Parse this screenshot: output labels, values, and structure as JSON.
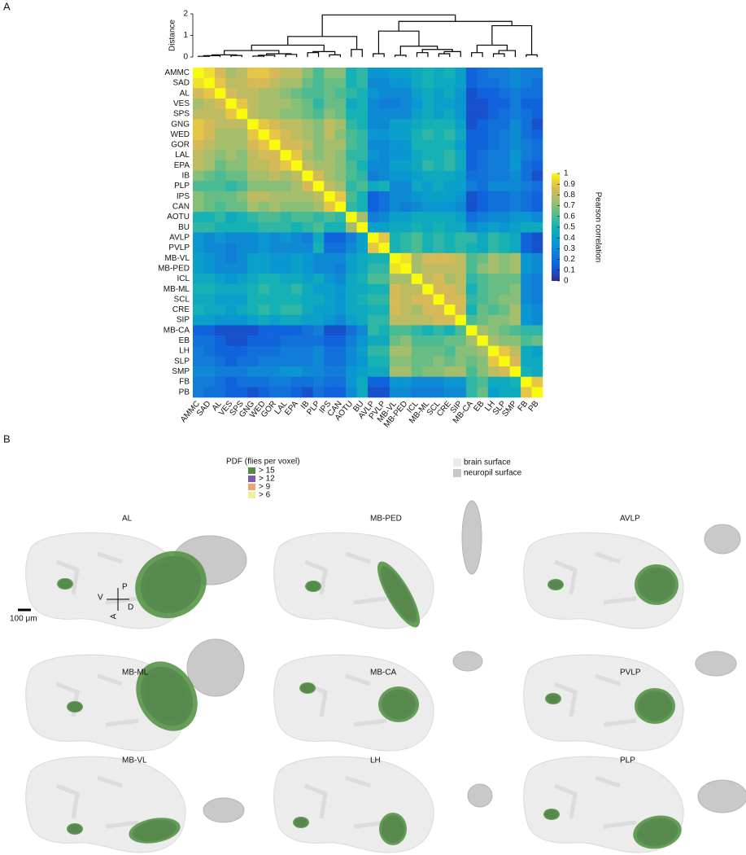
{
  "panel_labels": [
    "A",
    "B"
  ],
  "chart_data": {
    "type": "heatmap",
    "categories": [
      "AMMC",
      "SAD",
      "AL",
      "VES",
      "SPS",
      "GNG",
      "WED",
      "GOR",
      "LAL",
      "EPA",
      "IB",
      "PLP",
      "IPS",
      "CAN",
      "AOTU",
      "BU",
      "AVLP",
      "PVLP",
      "MB-VL",
      "MB-PED",
      "ICL",
      "MB-ML",
      "SCL",
      "CRE",
      "SIP",
      "MB-CA",
      "EB",
      "LH",
      "SLP",
      "SMP",
      "FB",
      "PB"
    ],
    "values": [
      [
        1
      ],
      [
        0.95,
        1
      ],
      [
        0.85,
        0.9,
        1
      ],
      [
        0.75,
        0.8,
        0.85,
        1
      ],
      [
        0.8,
        0.8,
        0.8,
        0.9,
        1
      ],
      [
        0.9,
        0.85,
        0.8,
        0.8,
        0.8,
        1
      ],
      [
        0.9,
        0.85,
        0.75,
        0.75,
        0.75,
        0.9,
        1
      ],
      [
        0.85,
        0.8,
        0.75,
        0.75,
        0.75,
        0.85,
        0.9,
        1
      ],
      [
        0.8,
        0.75,
        0.7,
        0.75,
        0.7,
        0.8,
        0.85,
        0.85,
        1
      ],
      [
        0.8,
        0.75,
        0.65,
        0.7,
        0.7,
        0.8,
        0.8,
        0.85,
        0.9,
        1
      ],
      [
        0.7,
        0.65,
        0.6,
        0.65,
        0.65,
        0.75,
        0.75,
        0.8,
        0.75,
        0.8,
        1
      ],
      [
        0.6,
        0.6,
        0.6,
        0.55,
        0.6,
        0.7,
        0.7,
        0.7,
        0.7,
        0.75,
        0.85,
        1
      ],
      [
        0.7,
        0.65,
        0.65,
        0.65,
        0.7,
        0.8,
        0.8,
        0.75,
        0.75,
        0.75,
        0.75,
        0.8,
        1
      ],
      [
        0.7,
        0.65,
        0.6,
        0.65,
        0.65,
        0.75,
        0.7,
        0.75,
        0.7,
        0.7,
        0.7,
        0.75,
        0.9,
        1
      ],
      [
        0.5,
        0.5,
        0.55,
        0.45,
        0.5,
        0.55,
        0.6,
        0.6,
        0.55,
        0.6,
        0.6,
        0.55,
        0.6,
        0.55,
        1
      ],
      [
        0.55,
        0.55,
        0.5,
        0.5,
        0.5,
        0.5,
        0.55,
        0.55,
        0.55,
        0.5,
        0.55,
        0.6,
        0.5,
        0.5,
        0.75,
        1
      ],
      [
        0.35,
        0.3,
        0.35,
        0.3,
        0.3,
        0.3,
        0.35,
        0.3,
        0.35,
        0.3,
        0.25,
        0.45,
        0.15,
        0.15,
        0.25,
        0.4,
        1
      ],
      [
        0.35,
        0.3,
        0.3,
        0.25,
        0.3,
        0.3,
        0.35,
        0.3,
        0.3,
        0.3,
        0.3,
        0.5,
        0.2,
        0.2,
        0.3,
        0.4,
        0.9,
        1
      ],
      [
        0.4,
        0.35,
        0.3,
        0.25,
        0.3,
        0.4,
        0.4,
        0.35,
        0.35,
        0.4,
        0.35,
        0.3,
        0.3,
        0.3,
        0.4,
        0.45,
        0.5,
        0.5,
        1
      ],
      [
        0.4,
        0.35,
        0.3,
        0.3,
        0.3,
        0.4,
        0.4,
        0.35,
        0.35,
        0.4,
        0.35,
        0.3,
        0.3,
        0.25,
        0.4,
        0.45,
        0.55,
        0.55,
        0.95,
        1
      ],
      [
        0.45,
        0.45,
        0.4,
        0.35,
        0.4,
        0.45,
        0.5,
        0.5,
        0.45,
        0.45,
        0.4,
        0.45,
        0.35,
        0.3,
        0.45,
        0.5,
        0.6,
        0.6,
        0.75,
        0.75,
        1
      ],
      [
        0.5,
        0.5,
        0.45,
        0.45,
        0.45,
        0.5,
        0.55,
        0.5,
        0.5,
        0.55,
        0.45,
        0.4,
        0.4,
        0.35,
        0.45,
        0.45,
        0.5,
        0.5,
        0.85,
        0.8,
        0.8,
        1
      ],
      [
        0.45,
        0.45,
        0.4,
        0.4,
        0.4,
        0.5,
        0.5,
        0.5,
        0.5,
        0.5,
        0.45,
        0.45,
        0.4,
        0.35,
        0.45,
        0.5,
        0.55,
        0.55,
        0.85,
        0.8,
        0.85,
        0.85,
        1
      ],
      [
        0.5,
        0.45,
        0.45,
        0.4,
        0.45,
        0.5,
        0.55,
        0.5,
        0.55,
        0.55,
        0.45,
        0.4,
        0.4,
        0.35,
        0.45,
        0.45,
        0.5,
        0.5,
        0.85,
        0.8,
        0.75,
        0.85,
        0.85,
        1
      ],
      [
        0.4,
        0.4,
        0.35,
        0.35,
        0.35,
        0.4,
        0.45,
        0.4,
        0.45,
        0.45,
        0.4,
        0.4,
        0.35,
        0.3,
        0.4,
        0.45,
        0.55,
        0.55,
        0.8,
        0.8,
        0.8,
        0.8,
        0.85,
        0.85,
        1
      ],
      [
        0.15,
        0.15,
        0.1,
        0.1,
        0.1,
        0.1,
        0.15,
        0.15,
        0.15,
        0.15,
        0.2,
        0.25,
        0.1,
        0.1,
        0.2,
        0.3,
        0.55,
        0.5,
        0.6,
        0.6,
        0.55,
        0.5,
        0.55,
        0.5,
        0.6,
        1
      ],
      [
        0.2,
        0.2,
        0.15,
        0.1,
        0.1,
        0.15,
        0.15,
        0.15,
        0.2,
        0.2,
        0.2,
        0.2,
        0.15,
        0.15,
        0.25,
        0.35,
        0.45,
        0.45,
        0.65,
        0.7,
        0.6,
        0.6,
        0.6,
        0.65,
        0.65,
        0.75,
        1
      ],
      [
        0.25,
        0.2,
        0.15,
        0.15,
        0.15,
        0.2,
        0.2,
        0.2,
        0.25,
        0.25,
        0.25,
        0.3,
        0.2,
        0.2,
        0.3,
        0.4,
        0.55,
        0.55,
        0.75,
        0.75,
        0.65,
        0.65,
        0.65,
        0.6,
        0.7,
        0.7,
        0.75,
        1
      ],
      [
        0.25,
        0.25,
        0.2,
        0.15,
        0.2,
        0.2,
        0.25,
        0.25,
        0.25,
        0.25,
        0.25,
        0.3,
        0.2,
        0.2,
        0.3,
        0.35,
        0.5,
        0.5,
        0.7,
        0.7,
        0.65,
        0.65,
        0.7,
        0.65,
        0.7,
        0.65,
        0.7,
        0.9,
        1
      ],
      [
        0.3,
        0.3,
        0.25,
        0.25,
        0.25,
        0.3,
        0.3,
        0.3,
        0.35,
        0.35,
        0.3,
        0.3,
        0.25,
        0.25,
        0.35,
        0.4,
        0.45,
        0.45,
        0.75,
        0.75,
        0.65,
        0.7,
        0.7,
        0.75,
        0.75,
        0.6,
        0.7,
        0.8,
        0.85,
        1
      ],
      [
        0.25,
        0.25,
        0.2,
        0.15,
        0.2,
        0.2,
        0.2,
        0.25,
        0.25,
        0.2,
        0.2,
        0.25,
        0.2,
        0.2,
        0.35,
        0.45,
        0.15,
        0.15,
        0.35,
        0.35,
        0.3,
        0.3,
        0.3,
        0.35,
        0.35,
        0.55,
        0.6,
        0.45,
        0.45,
        0.5,
        1
      ],
      [
        0.25,
        0.2,
        0.2,
        0.15,
        0.15,
        0.1,
        0.15,
        0.2,
        0.2,
        0.15,
        0.1,
        0.2,
        0.15,
        0.15,
        0.3,
        0.45,
        0.1,
        0.1,
        0.3,
        0.3,
        0.25,
        0.25,
        0.25,
        0.3,
        0.3,
        0.55,
        0.65,
        0.4,
        0.45,
        0.45,
        0.9,
        1
      ]
    ],
    "colorbar": {
      "label": "Pearson correlation",
      "lim": [
        0,
        1
      ],
      "ticks": [
        0,
        0.1,
        0.2,
        0.3,
        0.4,
        0.5,
        0.6,
        0.7,
        0.8,
        0.9,
        1
      ]
    },
    "dendrogram": {
      "ylabel": "Distance",
      "ylim": [
        0,
        2
      ],
      "yticks": [
        0,
        1,
        2
      ],
      "linkage": [
        [
          0,
          1,
          0.03
        ],
        [
          5,
          6,
          0.04
        ],
        [
          32,
          2,
          0.06
        ],
        [
          3,
          4,
          0.07
        ],
        [
          34,
          35,
          0.1
        ],
        [
          33,
          7,
          0.08
        ],
        [
          8,
          9,
          0.12
        ],
        [
          37,
          38,
          0.15
        ],
        [
          36,
          39,
          0.3
        ],
        [
          10,
          11,
          0.2
        ],
        [
          12,
          13,
          0.1
        ],
        [
          41,
          42,
          0.25
        ],
        [
          40,
          43,
          0.55
        ],
        [
          14,
          15,
          0.35
        ],
        [
          44,
          45,
          0.95
        ],
        [
          16,
          17,
          0.15
        ],
        [
          18,
          19,
          0.08
        ],
        [
          20,
          21,
          0.2
        ],
        [
          22,
          23,
          0.15
        ],
        [
          50,
          24,
          0.25
        ],
        [
          49,
          51,
          0.35
        ],
        [
          48,
          52,
          0.5
        ],
        [
          47,
          53,
          1.2
        ],
        [
          25,
          26,
          0.2
        ],
        [
          27,
          28,
          0.15
        ],
        [
          56,
          29,
          0.3
        ],
        [
          55,
          57,
          0.55
        ],
        [
          30,
          31,
          0.1
        ],
        [
          58,
          59,
          1.45
        ],
        [
          54,
          60,
          1.65
        ],
        [
          46,
          61,
          1.95
        ]
      ]
    }
  },
  "panel_b": {
    "legend_title": "PDF (flies per voxel)",
    "legend": [
      {
        "label": "> 15",
        "color": "#4e8f3e"
      },
      {
        "label": "> 12",
        "color": "#7c5ca8"
      },
      {
        "label": "> 9",
        "color": "#eda46e"
      },
      {
        "label": "> 6",
        "color": "#f4ee9c"
      }
    ],
    "surface_legend": [
      {
        "label": "brain surface",
        "color": "#ebebeb"
      },
      {
        "label": "neuropil surface",
        "color": "#c8c8c8"
      }
    ],
    "panels": [
      "AL",
      "MB-PED",
      "AVLP",
      "MB-ML",
      "MB-CA",
      "PVLP",
      "MB-VL",
      "LH",
      "PLP"
    ],
    "scale_bar": "100 μm",
    "compass": [
      "P",
      "A",
      "V",
      "D"
    ]
  }
}
